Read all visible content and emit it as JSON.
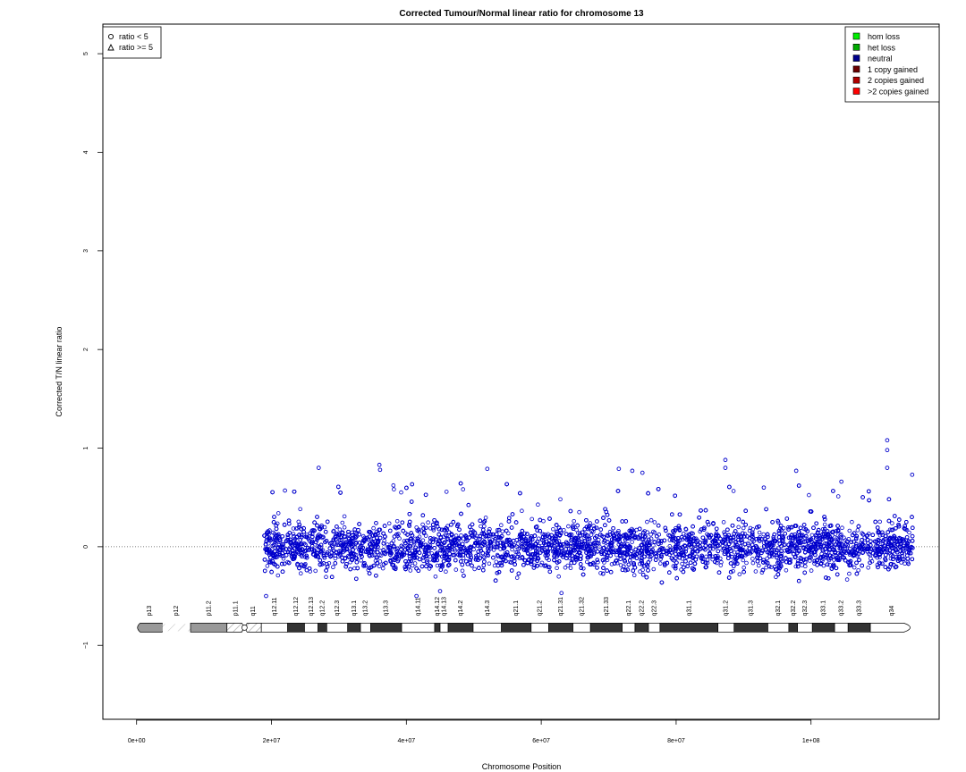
{
  "chart_data": {
    "type": "scatter",
    "title": "Corrected Tumour/Normal linear ratio for chromosome  13",
    "xlabel": "Chromosome Position",
    "ylabel": "Corrected T/N linear ratio",
    "xlim": [
      -5000000,
      119000000
    ],
    "ylim": [
      -1.75,
      5.3
    ],
    "x_ticks": [
      0,
      20000000,
      40000000,
      60000000,
      80000000,
      100000000
    ],
    "x_tick_labels": [
      "0e+00",
      "2e+07",
      "4e+07",
      "6e+07",
      "8e+07",
      "1e+08"
    ],
    "y_ticks": [
      -1,
      0,
      1,
      2,
      3,
      4,
      5
    ],
    "y_tick_labels": [
      "−1",
      "0",
      "1",
      "2",
      "3",
      "4",
      "5"
    ],
    "reference_line": 0,
    "point_color": "#0000cc",
    "data_x_range": [
      18900000,
      115100000
    ],
    "data_y_band": [
      -0.35,
      0.35
    ],
    "outliers": [
      {
        "x": 27000000,
        "y": 0.8
      },
      {
        "x": 36000000,
        "y": 0.83
      },
      {
        "x": 36100000,
        "y": 0.78
      },
      {
        "x": 52000000,
        "y": 0.79
      },
      {
        "x": 71500000,
        "y": 0.79
      },
      {
        "x": 73500000,
        "y": 0.77
      },
      {
        "x": 75000000,
        "y": 0.75
      },
      {
        "x": 87300000,
        "y": 0.88
      },
      {
        "x": 87300000,
        "y": 0.8
      },
      {
        "x": 97800000,
        "y": 0.77
      },
      {
        "x": 111300000,
        "y": 1.08
      },
      {
        "x": 111300000,
        "y": 0.98
      },
      {
        "x": 111300000,
        "y": 0.8
      },
      {
        "x": 115000000,
        "y": 0.73
      },
      {
        "x": 19200000,
        "y": -0.5
      },
      {
        "x": 22000000,
        "y": 0.57
      },
      {
        "x": 63000000,
        "y": -0.47
      },
      {
        "x": 41500000,
        "y": -0.5
      },
      {
        "x": 45000000,
        "y": -0.45
      },
      {
        "x": 93000000,
        "y": 0.6
      },
      {
        "x": 104500000,
        "y": 0.66
      }
    ],
    "shape_legend": {
      "position": "top-left",
      "items": [
        {
          "symbol": "circle",
          "label": "ratio < 5"
        },
        {
          "symbol": "triangle",
          "label": "ratio >= 5"
        }
      ]
    },
    "legend": {
      "position": "top-right",
      "items": [
        {
          "label": "hom loss",
          "color": "#00ee00"
        },
        {
          "label": "het loss",
          "color": "#00aa00"
        },
        {
          "label": "neutral",
          "color": "#00008b"
        },
        {
          "label": "1 copy gained",
          "color": "#6b0000"
        },
        {
          "label": "2 copies gained",
          "color": "#b00000"
        },
        {
          "label": ">2 copies gained",
          "color": "#ff0000"
        }
      ]
    },
    "ideogram": {
      "y": -0.82,
      "bands": [
        {
          "name": "p13",
          "start": 0,
          "end": 3800000,
          "stain": "gpos50",
          "shape": "left-cap"
        },
        {
          "name": "p12",
          "start": 3800000,
          "end": 8000000,
          "stain": "stalk"
        },
        {
          "name": "p11.2",
          "start": 8000000,
          "end": 13400000,
          "stain": "gpos50"
        },
        {
          "name": "p11.1",
          "start": 13400000,
          "end": 16000000,
          "stain": "acen-p"
        },
        {
          "name": "q11",
          "start": 16000000,
          "end": 18500000,
          "stain": "acen-q"
        },
        {
          "name": "q12.11",
          "start": 18500000,
          "end": 22400000,
          "stain": "gneg"
        },
        {
          "name": "q12.12",
          "start": 22400000,
          "end": 24900000,
          "stain": "gpos"
        },
        {
          "name": "q12.13",
          "start": 24900000,
          "end": 26900000,
          "stain": "gneg"
        },
        {
          "name": "q12.2",
          "start": 26900000,
          "end": 28200000,
          "stain": "gpos"
        },
        {
          "name": "q12.3",
          "start": 28200000,
          "end": 31300000,
          "stain": "gneg"
        },
        {
          "name": "q13.1",
          "start": 31300000,
          "end": 33200000,
          "stain": "gpos"
        },
        {
          "name": "q13.2",
          "start": 33200000,
          "end": 34700000,
          "stain": "gneg"
        },
        {
          "name": "q13.3",
          "start": 34700000,
          "end": 39300000,
          "stain": "gpos"
        },
        {
          "name": "q14.11",
          "start": 39300000,
          "end": 44200000,
          "stain": "gneg"
        },
        {
          "name": "q14.12",
          "start": 44200000,
          "end": 45000000,
          "stain": "gpos"
        },
        {
          "name": "q14.13",
          "start": 45000000,
          "end": 46200000,
          "stain": "gneg"
        },
        {
          "name": "q14.2",
          "start": 46200000,
          "end": 49900000,
          "stain": "gpos"
        },
        {
          "name": "q14.3",
          "start": 49900000,
          "end": 54100000,
          "stain": "gneg"
        },
        {
          "name": "q21.1",
          "start": 54100000,
          "end": 58500000,
          "stain": "gpos"
        },
        {
          "name": "q21.2",
          "start": 58500000,
          "end": 61100000,
          "stain": "gneg"
        },
        {
          "name": "q21.31",
          "start": 61100000,
          "end": 64700000,
          "stain": "gpos"
        },
        {
          "name": "q21.32",
          "start": 64700000,
          "end": 67300000,
          "stain": "gneg"
        },
        {
          "name": "q21.33",
          "start": 67300000,
          "end": 72000000,
          "stain": "gpos"
        },
        {
          "name": "q22.1",
          "start": 72000000,
          "end": 73900000,
          "stain": "gneg"
        },
        {
          "name": "q22.2",
          "start": 73900000,
          "end": 75900000,
          "stain": "gpos"
        },
        {
          "name": "q22.3",
          "start": 75900000,
          "end": 77600000,
          "stain": "gneg"
        },
        {
          "name": "q31.1",
          "start": 77600000,
          "end": 86200000,
          "stain": "gpos"
        },
        {
          "name": "q31.2",
          "start": 86200000,
          "end": 88600000,
          "stain": "gneg"
        },
        {
          "name": "q31.3",
          "start": 88600000,
          "end": 93600000,
          "stain": "gpos"
        },
        {
          "name": "q32.1",
          "start": 93600000,
          "end": 96700000,
          "stain": "gneg"
        },
        {
          "name": "q32.2",
          "start": 96700000,
          "end": 98000000,
          "stain": "gpos"
        },
        {
          "name": "q32.3",
          "start": 98000000,
          "end": 100200000,
          "stain": "gneg"
        },
        {
          "name": "q33.1",
          "start": 100200000,
          "end": 103500000,
          "stain": "gpos"
        },
        {
          "name": "q33.2",
          "start": 103500000,
          "end": 105500000,
          "stain": "gneg"
        },
        {
          "name": "q33.3",
          "start": 105500000,
          "end": 108800000,
          "stain": "gpos"
        },
        {
          "name": "q34",
          "start": 108800000,
          "end": 115100000,
          "stain": "gneg",
          "shape": "right-cap"
        }
      ]
    }
  }
}
